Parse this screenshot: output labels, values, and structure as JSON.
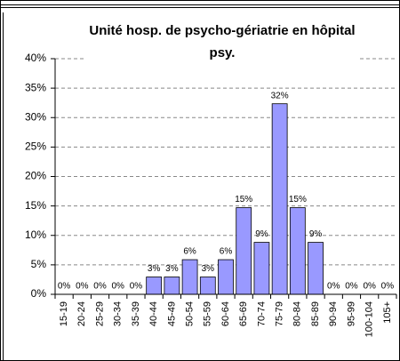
{
  "chart_data": {
    "type": "bar",
    "title": "Unité hosp. de psycho-gériatrie en hôpital psy.",
    "categories": [
      "15-19",
      "20-24",
      "25-29",
      "30-34",
      "35-39",
      "40-44",
      "45-49",
      "50-54",
      "55-59",
      "60-64",
      "65-69",
      "70-74",
      "75-79",
      "80-84",
      "85-89",
      "90-94",
      "95-99",
      "100-104",
      "105+"
    ],
    "values": [
      0,
      0,
      0,
      0,
      0,
      2.94,
      2.94,
      5.88,
      2.94,
      5.88,
      14.71,
      8.82,
      32.35,
      14.71,
      8.82,
      0,
      0,
      0,
      0
    ],
    "value_labels": [
      "0%",
      "0%",
      "0%",
      "0%",
      "0%",
      "3%",
      "3%",
      "6%",
      "3%",
      "6%",
      "15%",
      "9%",
      "32%",
      "15%",
      "9%",
      "0%",
      "0%",
      "0%",
      "0%"
    ],
    "color": "#9999ff",
    "ylim": [
      0,
      40
    ],
    "yticks": [
      {
        "value": 0,
        "label": "0%"
      },
      {
        "value": 5,
        "label": "5%"
      },
      {
        "value": 10,
        "label": "10%"
      },
      {
        "value": 15,
        "label": "15%"
      },
      {
        "value": 20,
        "label": "20%"
      },
      {
        "value": 25,
        "label": "25%"
      },
      {
        "value": 30,
        "label": "30%"
      },
      {
        "value": 35,
        "label": "35%"
      },
      {
        "value": 40,
        "label": "40%"
      }
    ],
    "grid": true
  }
}
